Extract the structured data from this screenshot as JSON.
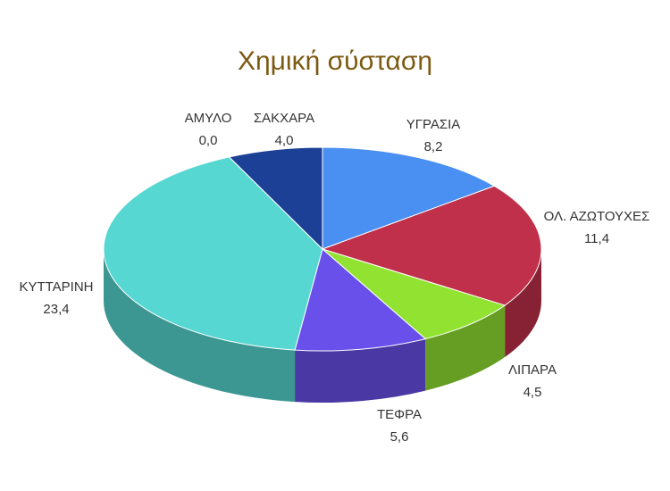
{
  "chart_data": {
    "type": "pie",
    "title": "Χημική σύσταση",
    "categories": [
      "ΥΓΡΑΣΙΑ",
      "ΟΛ. ΑΖΩΤΟΥΧΕΣ",
      "ΛΙΠΑΡΑ",
      "ΤΕΦΡΑ",
      "ΚΥΤΤΑΡΙΝΗ",
      "ΑΜΥΛΟ",
      "ΣΑΚΧΑΡΑ"
    ],
    "values": [
      8.2,
      11.4,
      4.5,
      5.6,
      23.4,
      0.0,
      4.0
    ],
    "value_labels": [
      "8,2",
      "11,4",
      "4,5",
      "5,6",
      "23,4",
      "0,0",
      "4,0"
    ],
    "colors": [
      "#4a8ff2",
      "#c0304a",
      "#92e232",
      "#6a50ea",
      "#56d7d2",
      "#e8a040",
      "#1b4095"
    ]
  }
}
